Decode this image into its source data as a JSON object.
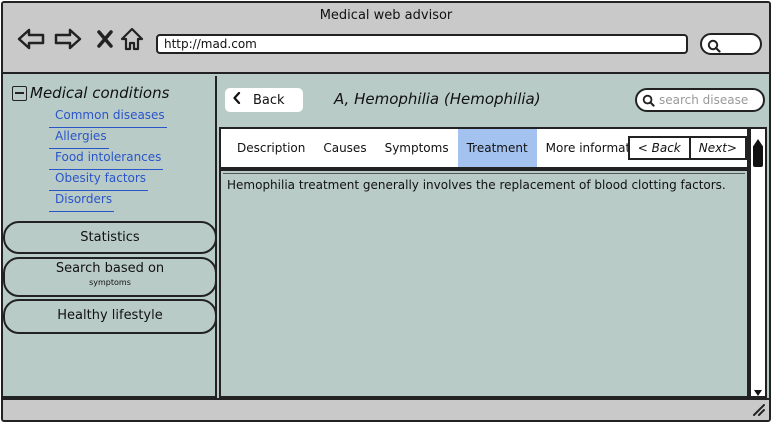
{
  "window": {
    "title": "Medical web advisor"
  },
  "browser": {
    "url": "http://mad.com",
    "icons": [
      "back-arrow-icon",
      "forward-arrow-icon",
      "close-icon",
      "home-icon",
      "search-icon"
    ]
  },
  "sidebar": {
    "tree_title": "Medical conditions",
    "items": [
      {
        "label": "Common diseases"
      },
      {
        "label": "Allergies"
      },
      {
        "label": "Food intolerances"
      },
      {
        "label": "Obesity factors"
      },
      {
        "label": "Disorders"
      }
    ],
    "buttons": [
      {
        "label": "Statistics"
      },
      {
        "label": "Search based on",
        "sublabel": "symptoms"
      },
      {
        "label": "Healthy lifestyle"
      }
    ]
  },
  "content": {
    "back_label": "Back",
    "title": "A, Hemophilia (Hemophilia)",
    "search_placeholder": "search disease",
    "tabs": [
      {
        "label": "Description"
      },
      {
        "label": "Causes"
      },
      {
        "label": "Symptoms"
      },
      {
        "label": "Treatment",
        "active": true
      },
      {
        "label": "More information"
      }
    ],
    "pager": {
      "prev": "< Back",
      "next": "Next>"
    },
    "body_text": "Hemophilia treatment generally involves the replacement of blood clotting factors."
  },
  "colors": {
    "background": "#b9cbc7",
    "chrome": "#c9c9c9",
    "link": "#2a55c9",
    "active_tab": "#a4c2ef"
  }
}
